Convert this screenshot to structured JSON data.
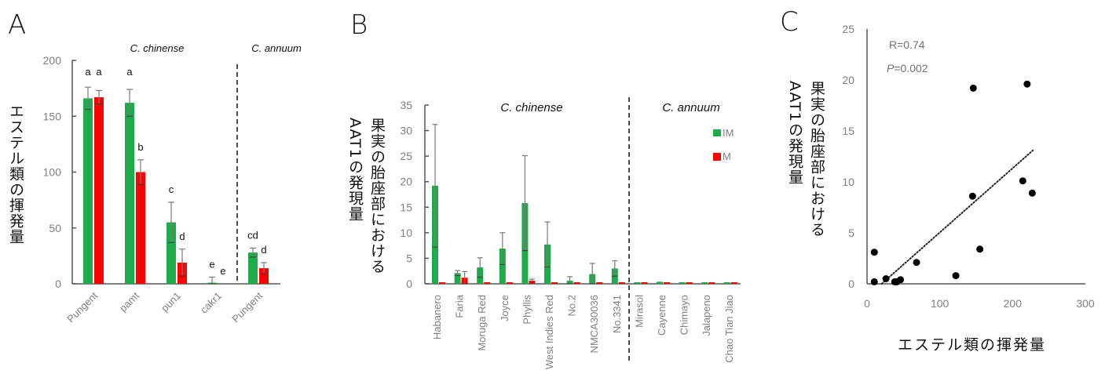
{
  "colors": {
    "im": "#1faa4c",
    "m": "#ff0000",
    "axis": "#555555",
    "error": "#7a7a7a",
    "tick": "#808080",
    "point": "#000000"
  },
  "panelA": {
    "letter": "A",
    "ylabel": "エステル類の揮発量",
    "groups": [
      {
        "label": "C. chinense"
      },
      {
        "label": "C. annuum"
      }
    ]
  },
  "panelB": {
    "letter": "B",
    "ylabel_col1": "果実の胎座部における",
    "ylabel_col2": "AAT1の発現量",
    "groups": [
      {
        "label": "C. chinense"
      },
      {
        "label": "C. annuum"
      }
    ],
    "legend": [
      {
        "label": "IM"
      },
      {
        "label": "M"
      }
    ]
  },
  "panelC": {
    "letter": "C",
    "ylabel_col1": "果実の胎座部における",
    "ylabel_col2": "AAT1の発現量",
    "xlabel": "エステル類の揮発量",
    "r_text": "R=0.74",
    "p_label": "P",
    "p_text": "=0.002"
  },
  "chart_data": [
    {
      "panel": "A",
      "type": "bar",
      "title": "",
      "xlabel": "",
      "ylabel": "エステル類の揮発量",
      "ylim": [
        0,
        200
      ],
      "yticks": [
        0,
        50,
        100,
        150,
        200
      ],
      "categories": [
        "Pungent",
        "pamt",
        "pun1",
        "cakr1",
        "Pungent"
      ],
      "category_groups": [
        "C. chinense",
        "C. chinense",
        "C. chinense",
        "C. chinense",
        "C. annuum"
      ],
      "series": [
        {
          "name": "IM",
          "color": "#1faa4c",
          "values": [
            166,
            162,
            55,
            1,
            28
          ],
          "errors": [
            10,
            12,
            18,
            5,
            4
          ],
          "letters": [
            "a",
            "a",
            "c",
            "e",
            "cd"
          ]
        },
        {
          "name": "M",
          "color": "#ff0000",
          "values": [
            167,
            100,
            19,
            0,
            14
          ],
          "errors": [
            6,
            11,
            12,
            0,
            5
          ],
          "letters": [
            "a",
            "b",
            "d",
            "e",
            "d"
          ]
        }
      ],
      "annotations": [
        "C. chinense",
        "C. annuum"
      ],
      "divider_after_index": 3,
      "grid": false,
      "legend": "none"
    },
    {
      "panel": "B",
      "type": "bar",
      "title": "",
      "xlabel": "",
      "ylabel": "果実の胎座部における AAT1の発現量",
      "ylim": [
        0,
        35
      ],
      "yticks": [
        0,
        5,
        10,
        15,
        20,
        25,
        30,
        35
      ],
      "categories": [
        "Habanero",
        "Faria",
        "Moruga Red",
        "Joyce",
        "Phyllis",
        "West Indies Red",
        "No.2",
        "NMCA30036",
        "No.3341",
        "Mirasol",
        "Cayenne",
        "Chimayo",
        "Jalapeno",
        "Chao Tian Jiao"
      ],
      "category_groups": [
        "C. chinense",
        "C. chinense",
        "C. chinense",
        "C. chinense",
        "C. chinense",
        "C. chinense",
        "C. chinense",
        "C. chinense",
        "C. chinense",
        "C. annuum",
        "C. annuum",
        "C. annuum",
        "C. annuum",
        "C. annuum"
      ],
      "series": [
        {
          "name": "IM",
          "color": "#1faa4c",
          "values": [
            19.2,
            2.1,
            3.2,
            6.9,
            15.8,
            7.7,
            0.6,
            1.9,
            3.0,
            0.2,
            0.4,
            0.2,
            0.2,
            0.2
          ],
          "errors": [
            12,
            0.5,
            1.9,
            3.1,
            9.3,
            4.4,
            0.8,
            2.1,
            1.5,
            0.1,
            0.2,
            0.1,
            0.1,
            0.1
          ]
        },
        {
          "name": "M",
          "color": "#ff0000",
          "values": [
            0.2,
            1.2,
            0.2,
            0.2,
            0.6,
            0.2,
            0.2,
            0.2,
            0.2,
            0.2,
            0.2,
            0.2,
            0.2,
            0.2
          ],
          "errors": [
            0,
            1.2,
            0,
            0,
            0.3,
            0,
            0,
            0,
            0,
            0,
            0,
            0,
            0,
            0
          ]
        }
      ],
      "annotations": [
        "C. chinense",
        "C. annuum"
      ],
      "divider_after_index": 8,
      "grid": false,
      "legend": "upper right"
    },
    {
      "panel": "C",
      "type": "scatter",
      "title": "",
      "xlabel": "エステル類の揮発量",
      "ylabel": "果実の胎座部における AAT1の発現量",
      "xlim": [
        0,
        300
      ],
      "ylim": [
        0,
        25
      ],
      "xticks": [
        0,
        100,
        200,
        300
      ],
      "yticks": [
        0,
        5,
        10,
        15,
        20,
        25
      ],
      "points": [
        {
          "x": 10,
          "y": 0.2
        },
        {
          "x": 10,
          "y": 3.1
        },
        {
          "x": 26,
          "y": 0.5
        },
        {
          "x": 38,
          "y": 0.2
        },
        {
          "x": 41,
          "y": 0.2
        },
        {
          "x": 46,
          "y": 0.4
        },
        {
          "x": 68,
          "y": 2.1
        },
        {
          "x": 122,
          "y": 0.8
        },
        {
          "x": 145,
          "y": 8.6
        },
        {
          "x": 146,
          "y": 19.2
        },
        {
          "x": 155,
          "y": 3.4
        },
        {
          "x": 214,
          "y": 10.1
        },
        {
          "x": 220,
          "y": 19.6
        },
        {
          "x": 227,
          "y": 8.9
        }
      ],
      "trendline": {
        "style": "dotted",
        "from": {
          "x": 20,
          "y": 0
        },
        "to": {
          "x": 228,
          "y": 13.1
        }
      },
      "annotations": [
        "R=0.74",
        "P=0.002"
      ],
      "grid": false,
      "legend": "none"
    }
  ]
}
